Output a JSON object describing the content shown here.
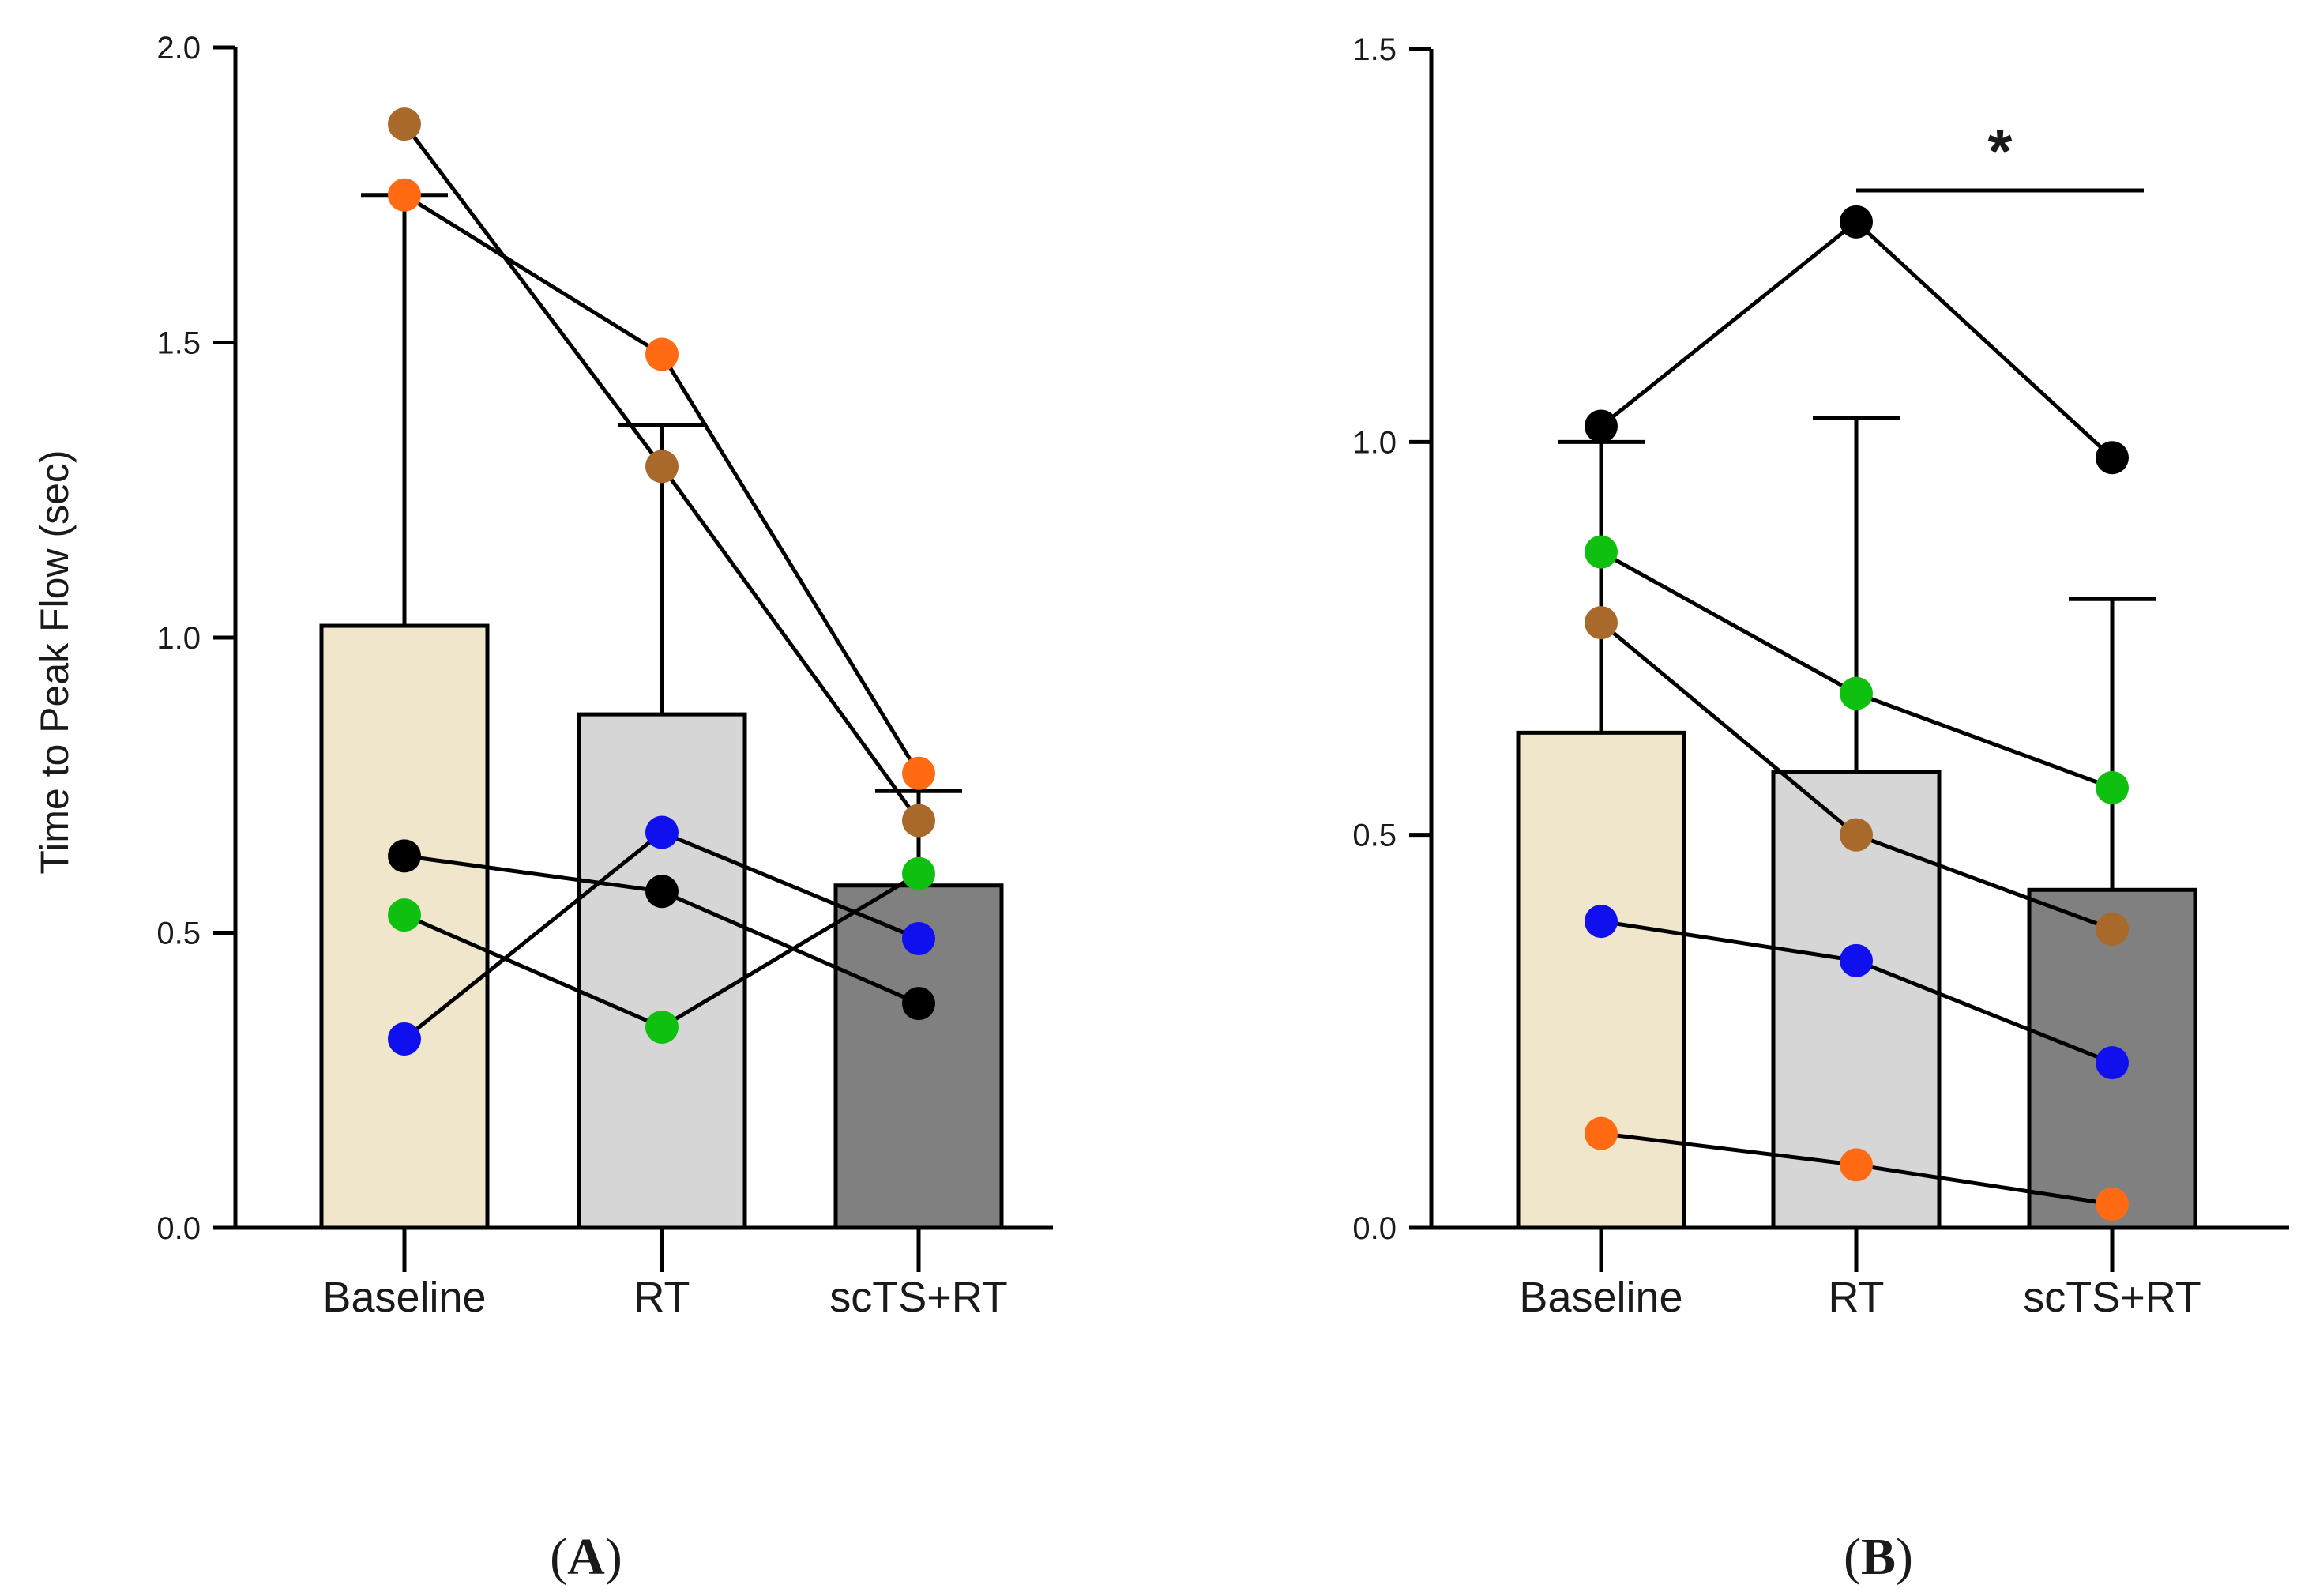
{
  "chart_data": [
    {
      "type": "bar",
      "panel_label": "A",
      "ylabel": "Time to Peak Flow (sec)",
      "xlabel": "",
      "categories": [
        "Baseline",
        "RT",
        "scTS+RT"
      ],
      "ylim": [
        0,
        2.0
      ],
      "yticks": [
        0.0,
        0.5,
        1.0,
        1.5,
        2.0
      ],
      "ytick_labels": [
        "0.0",
        "0.5",
        "1.0",
        "1.5",
        "2.0"
      ],
      "bar_colors": [
        "#efe6cc",
        "#d6d6d6",
        "#808080"
      ],
      "means": [
        1.02,
        0.87,
        0.58
      ],
      "error_upper": [
        1.75,
        1.36,
        0.74
      ],
      "subjects": [
        {
          "name": "brown",
          "color": "#a8692b",
          "values": [
            1.87,
            1.29,
            0.69
          ]
        },
        {
          "name": "orange",
          "color": "#ff6a13",
          "values": [
            1.75,
            1.48,
            0.77
          ]
        },
        {
          "name": "black",
          "color": "#000000",
          "values": [
            0.63,
            0.57,
            0.38
          ]
        },
        {
          "name": "green",
          "color": "#10c010",
          "values": [
            0.53,
            0.34,
            0.6
          ]
        },
        {
          "name": "blue",
          "color": "#1010ee",
          "values": [
            0.32,
            0.67,
            0.49
          ]
        }
      ],
      "significance": []
    },
    {
      "type": "bar",
      "panel_label": "B",
      "ylabel": "",
      "xlabel": "",
      "categories": [
        "Baseline",
        "RT",
        "scTS+RT"
      ],
      "ylim": [
        0,
        1.5
      ],
      "yticks": [
        0.0,
        0.5,
        1.0,
        1.5
      ],
      "ytick_labels": [
        "0.0",
        "0.5",
        "1.0",
        "1.5"
      ],
      "bar_colors": [
        "#efe6cc",
        "#d6d6d6",
        "#808080"
      ],
      "means": [
        0.63,
        0.58,
        0.43
      ],
      "error_upper": [
        1.0,
        1.03,
        0.8
      ],
      "subjects": [
        {
          "name": "black",
          "color": "#000000",
          "values": [
            1.02,
            1.28,
            0.98
          ]
        },
        {
          "name": "green",
          "color": "#10c010",
          "values": [
            0.86,
            0.68,
            0.56
          ]
        },
        {
          "name": "brown",
          "color": "#a8692b",
          "values": [
            0.77,
            0.5,
            0.38
          ]
        },
        {
          "name": "blue",
          "color": "#1010ee",
          "values": [
            0.39,
            0.34,
            0.21
          ]
        },
        {
          "name": "orange",
          "color": "#ff6a13",
          "values": [
            0.12,
            0.08,
            0.03
          ]
        }
      ],
      "significance": [
        {
          "from": 1,
          "to": 2,
          "label": "*",
          "level": 1.32
        }
      ]
    }
  ]
}
